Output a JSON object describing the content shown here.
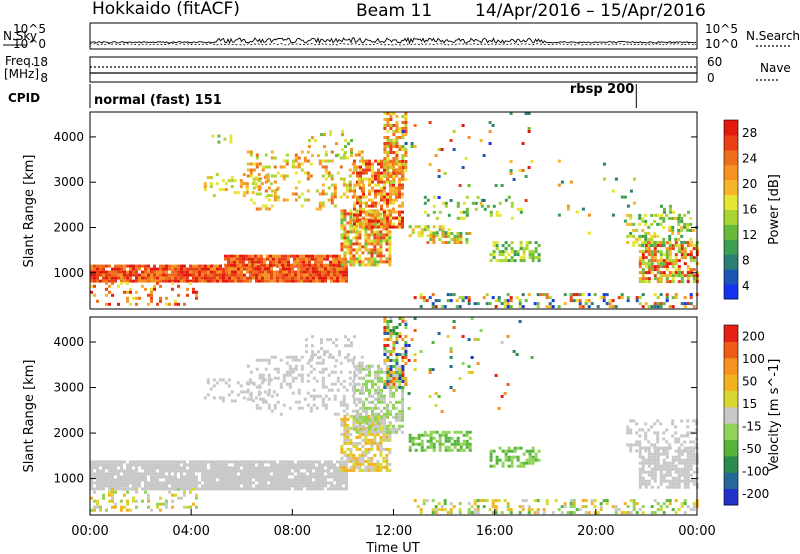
{
  "header": {
    "site": "Hokkaido (fitACF)",
    "beam": "Beam 11",
    "date_range": "14/Apr/2016 – 15/Apr/2016"
  },
  "nsky_panel": {
    "left_label": "N.Sky",
    "right_label": "N.Search",
    "left_ticks": [
      "10^5",
      "10^0"
    ],
    "right_ticks": [
      "10^5",
      "10^0"
    ]
  },
  "freq_panel": {
    "left_label_1": "Freq.",
    "left_label_2": "[MHz]",
    "left_ticks": [
      "18",
      "8"
    ],
    "right_label": "Nave",
    "right_ticks": [
      "60",
      "0"
    ]
  },
  "cpid_panel": {
    "label": "CPID",
    "mode_1": "normal (fast) 151",
    "mode_2": "rbsp 200",
    "mode_2_start_hour": 21.6
  },
  "x_axis": {
    "label": "Time UT",
    "ticks": [
      "00:00",
      "04:00",
      "08:00",
      "12:00",
      "16:00",
      "20:00",
      "00:00"
    ],
    "range_hours": [
      0,
      24
    ]
  },
  "chart_data": [
    {
      "type": "heatmap",
      "name": "power",
      "ylabel": "Slant Range [km]",
      "yticks": [
        1000,
        2000,
        3000,
        4000
      ],
      "ylim": [
        200,
        4550
      ],
      "colorbar_label": "Power [dB]",
      "colorbar_ticks": [
        "28",
        "24",
        "20",
        "16",
        "12",
        "8",
        "4"
      ],
      "colors": [
        "#1433ee",
        "#1c56b5",
        "#2b7e74",
        "#3e9f52",
        "#68bb3a",
        "#a8d531",
        "#e5e533",
        "#f6b52a",
        "#f59221",
        "#ef6e1c",
        "#ea3f16",
        "#e41a0e"
      ],
      "blobs": [
        {
          "t0": 0,
          "t1": 10.1,
          "r0": 800,
          "r1": 1180,
          "d": 0.95,
          "c": [
            8,
            11
          ]
        },
        {
          "t0": 5.3,
          "t1": 10.1,
          "r0": 1160,
          "r1": 1400,
          "d": 0.9,
          "c": [
            8,
            11
          ]
        },
        {
          "t0": 0,
          "t1": 4.2,
          "r0": 300,
          "r1": 800,
          "d": 0.25,
          "c": [
            6,
            11
          ]
        },
        {
          "t0": 9.9,
          "t1": 11.8,
          "r0": 1200,
          "r1": 2400,
          "d": 0.75,
          "c": [
            4,
            10
          ]
        },
        {
          "t0": 10.4,
          "t1": 12.4,
          "r0": 2000,
          "r1": 3500,
          "d": 0.65,
          "c": [
            6,
            11
          ]
        },
        {
          "t0": 11.6,
          "t1": 12.5,
          "r0": 3000,
          "r1": 4550,
          "d": 0.55,
          "c": [
            5,
            10
          ]
        },
        {
          "t0": 6.2,
          "t1": 10.8,
          "r0": 2400,
          "r1": 3700,
          "d": 0.25,
          "c": [
            5,
            9
          ]
        },
        {
          "t0": 4.5,
          "t1": 7.4,
          "r0": 2700,
          "r1": 3200,
          "d": 0.25,
          "c": [
            5,
            8
          ]
        },
        {
          "t0": 8.5,
          "t1": 10.5,
          "r0": 3600,
          "r1": 4150,
          "d": 0.2,
          "c": [
            4,
            8
          ]
        },
        {
          "t0": 4.8,
          "t1": 5.7,
          "r0": 3900,
          "r1": 4050,
          "d": 0.25,
          "c": [
            4,
            6
          ]
        },
        {
          "t0": 12.6,
          "t1": 14.2,
          "r0": 1850,
          "r1": 2050,
          "d": 0.6,
          "c": [
            3,
            7
          ]
        },
        {
          "t0": 13.3,
          "t1": 15.0,
          "r0": 1650,
          "r1": 1900,
          "d": 0.55,
          "c": [
            3,
            9
          ]
        },
        {
          "t0": 15.8,
          "t1": 17.8,
          "r0": 1300,
          "r1": 1700,
          "d": 0.5,
          "c": [
            3,
            6
          ]
        },
        {
          "t0": 13.2,
          "t1": 17.0,
          "r0": 2200,
          "r1": 2700,
          "d": 0.15,
          "c": [
            3,
            6
          ]
        },
        {
          "t0": 21.7,
          "t1": 24,
          "r0": 800,
          "r1": 1700,
          "d": 0.7,
          "c": [
            4,
            11
          ]
        },
        {
          "t0": 21.2,
          "t1": 24,
          "r0": 1600,
          "r1": 2300,
          "d": 0.35,
          "c": [
            3,
            7
          ]
        },
        {
          "t0": 22.3,
          "t1": 23.8,
          "r0": 2300,
          "r1": 2500,
          "d": 0.25,
          "c": [
            3,
            6
          ]
        },
        {
          "t0": 12.8,
          "t1": 24,
          "r0": 250,
          "r1": 550,
          "d": 0.35,
          "c": [
            0,
            11
          ]
        },
        {
          "t0": 12.2,
          "t1": 17.5,
          "r0": 2500,
          "r1": 4550,
          "d": 0.04,
          "c": [
            0,
            11
          ]
        },
        {
          "t0": 18.5,
          "t1": 21.5,
          "r0": 1900,
          "r1": 3500,
          "d": 0.03,
          "c": [
            2,
            8
          ]
        }
      ]
    },
    {
      "type": "heatmap",
      "name": "velocity",
      "ylabel": "Slant Range [km]",
      "yticks": [
        1000,
        2000,
        3000,
        4000
      ],
      "ylim": [
        200,
        4550
      ],
      "colorbar_label": "Velocity [m s^-1]",
      "colorbar_ticks": [
        "200",
        "100",
        "50",
        "15",
        "-15",
        "-50",
        "-100",
        "-200"
      ],
      "colors": [
        "#2232c8",
        "#24689a",
        "#2c8a4d",
        "#55b53a",
        "#8fd457",
        "#c8c8c8",
        "#d7d733",
        "#f2b21f",
        "#f59221",
        "#ef5c18",
        "#e42114"
      ],
      "blobs": [
        {
          "t0": 0,
          "t1": 10.1,
          "r0": 800,
          "r1": 1400,
          "d": 0.9,
          "c": [
            5,
            5
          ]
        },
        {
          "t0": 0,
          "t1": 4.2,
          "r0": 300,
          "r1": 800,
          "d": 0.25,
          "c": [
            4,
            7
          ]
        },
        {
          "t0": 9.9,
          "t1": 11.8,
          "r0": 1200,
          "r1": 2400,
          "d": 0.7,
          "c": [
            5,
            7
          ]
        },
        {
          "t0": 10.4,
          "t1": 12.4,
          "r0": 2000,
          "r1": 3500,
          "d": 0.6,
          "c": [
            4,
            5
          ]
        },
        {
          "t0": 11.6,
          "t1": 12.5,
          "r0": 3000,
          "r1": 4550,
          "d": 0.5,
          "c": [
            0,
            10
          ]
        },
        {
          "t0": 6.2,
          "t1": 10.8,
          "r0": 2400,
          "r1": 3700,
          "d": 0.25,
          "c": [
            5,
            5
          ]
        },
        {
          "t0": 4.5,
          "t1": 7.4,
          "r0": 2700,
          "r1": 3200,
          "d": 0.25,
          "c": [
            5,
            5
          ]
        },
        {
          "t0": 8.5,
          "t1": 10.5,
          "r0": 3600,
          "r1": 4150,
          "d": 0.2,
          "c": [
            5,
            5
          ]
        },
        {
          "t0": 12.6,
          "t1": 15.0,
          "r0": 1650,
          "r1": 2050,
          "d": 0.6,
          "c": [
            3,
            4
          ]
        },
        {
          "t0": 15.8,
          "t1": 17.8,
          "r0": 1300,
          "r1": 1700,
          "d": 0.5,
          "c": [
            3,
            4
          ]
        },
        {
          "t0": 21.7,
          "t1": 24,
          "r0": 800,
          "r1": 1700,
          "d": 0.7,
          "c": [
            5,
            5
          ]
        },
        {
          "t0": 21.2,
          "t1": 24,
          "r0": 1600,
          "r1": 2300,
          "d": 0.35,
          "c": [
            5,
            5
          ]
        },
        {
          "t0": 12.8,
          "t1": 24,
          "r0": 250,
          "r1": 550,
          "d": 0.35,
          "c": [
            3,
            7
          ]
        },
        {
          "t0": 12.2,
          "t1": 17.5,
          "r0": 2500,
          "r1": 4550,
          "d": 0.04,
          "c": [
            0,
            10
          ]
        }
      ]
    }
  ]
}
